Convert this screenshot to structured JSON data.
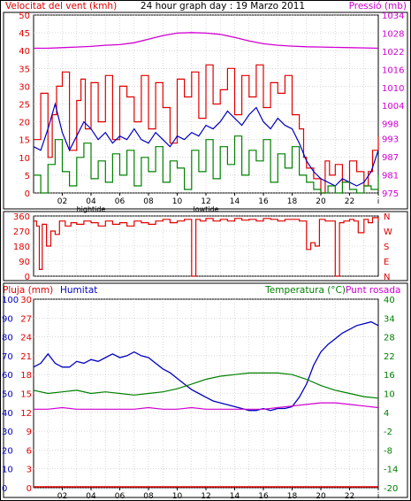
{
  "header": {
    "left_title": "Velocitat del vent (kmh)",
    "center_title": "24 hour graph day : 19 Marzo 2011",
    "right_title": "Pressió (mb)"
  },
  "colors": {
    "wind": "#e00000",
    "gust": "#0000c0",
    "avg": "#008000",
    "pressure": "#d000d0",
    "humidity": "#0000c0",
    "temperature": "#008000",
    "dewpoint": "#d000d0",
    "rain": "#e00000",
    "grid": "#c0c0c0",
    "frame": "#000000"
  },
  "x_ticks": [
    "02",
    "04",
    "06",
    "08",
    "10",
    "12",
    "14",
    "16",
    "18",
    "20",
    "22",
    "i"
  ],
  "tide_labels": [
    {
      "hour": 4,
      "text": "hightide"
    },
    {
      "hour": 12,
      "text": "lowtide"
    }
  ],
  "chart_data": [
    {
      "type": "line",
      "name": "wind-pressure",
      "x_unit": "hour",
      "xlim": [
        0,
        24
      ],
      "left_axis": {
        "label": "Velocitat del vent (kmh)",
        "ylim": [
          0,
          50
        ],
        "ticks": [
          0,
          5,
          10,
          15,
          20,
          25,
          30,
          35,
          40,
          45,
          50
        ]
      },
      "right_axis": {
        "label": "Pressió (mb)",
        "ylim": [
          975,
          1034
        ],
        "ticks": [
          975,
          981,
          987,
          993,
          998,
          1004,
          1010,
          1016,
          1022,
          1028,
          1034
        ]
      },
      "series": [
        {
          "name": "Velocitat del vent (kmh)",
          "axis": "left",
          "role": "gust",
          "x": [
            0,
            0.5,
            1,
            1.3,
            1.6,
            2,
            2.5,
            3,
            3.3,
            3.6,
            4,
            4.5,
            5,
            5.5,
            6,
            6.5,
            7,
            7.5,
            8,
            8.5,
            9,
            9.5,
            10,
            10.5,
            11,
            11.5,
            12,
            12.5,
            13,
            13.5,
            14,
            14.5,
            15,
            15.5,
            16,
            16.5,
            17,
            17.5,
            18,
            18.5,
            18.8,
            19,
            19.5,
            20,
            20.3,
            20.6,
            21,
            21.5,
            22,
            22.5,
            23,
            23.3,
            23.6,
            24
          ],
          "y": [
            15,
            28,
            10,
            22,
            30,
            34,
            12,
            26,
            32,
            18,
            31,
            20,
            33,
            15,
            30,
            27,
            20,
            33,
            18,
            31,
            24,
            14,
            32,
            27,
            34,
            21,
            36,
            25,
            29,
            35,
            22,
            33,
            27,
            36,
            24,
            31,
            28,
            33,
            22,
            18,
            10,
            7,
            4,
            0,
            9,
            5,
            8,
            3,
            9,
            6,
            2,
            6,
            12,
            16
          ]
        },
        {
          "name": "",
          "axis": "left",
          "role": "average",
          "x": [
            0,
            0.5,
            1,
            1.5,
            2,
            2.5,
            3,
            3.5,
            4,
            4.5,
            5,
            5.5,
            6,
            6.5,
            7,
            7.5,
            8,
            8.5,
            9,
            9.5,
            10,
            10.5,
            11,
            11.5,
            12,
            12.5,
            13,
            13.5,
            14,
            14.5,
            15,
            15.5,
            16,
            16.5,
            17,
            17.5,
            18,
            18.5,
            19,
            19.5,
            20,
            20.5,
            21,
            21.5,
            22,
            22.5,
            23,
            23.5,
            24
          ],
          "y": [
            13,
            12,
            18,
            25,
            17,
            12,
            16,
            20,
            18,
            15,
            17,
            14,
            16,
            15,
            18,
            15,
            14,
            17,
            15,
            13,
            16,
            15,
            17,
            16,
            19,
            18,
            20,
            23,
            21,
            19,
            22,
            24,
            20,
            18,
            21,
            19,
            18,
            14,
            9,
            6,
            4,
            3,
            2,
            4,
            3,
            2,
            3,
            6,
            12
          ]
        },
        {
          "name": "",
          "axis": "left",
          "role": "min",
          "x": [
            0,
            0.5,
            1,
            1.5,
            2,
            2.5,
            3,
            3.5,
            4,
            4.5,
            5,
            5.5,
            6,
            6.5,
            7,
            7.5,
            8,
            8.5,
            9,
            9.5,
            10,
            10.5,
            11,
            11.5,
            12,
            12.5,
            13,
            13.5,
            14,
            14.5,
            15,
            15.5,
            16,
            16.5,
            17,
            17.5,
            18,
            18.5,
            19,
            19.5,
            20,
            20.5,
            21,
            21.5,
            22,
            22.5,
            23,
            23.5,
            24
          ],
          "y": [
            5,
            0,
            8,
            15,
            6,
            2,
            10,
            14,
            4,
            9,
            3,
            11,
            5,
            12,
            2,
            10,
            6,
            13,
            3,
            9,
            7,
            1,
            12,
            6,
            15,
            4,
            13,
            8,
            16,
            5,
            12,
            9,
            15,
            3,
            11,
            7,
            13,
            5,
            3,
            1,
            0,
            2,
            0,
            3,
            1,
            0,
            2,
            1,
            5
          ]
        },
        {
          "name": "Pressió (mb)",
          "axis": "right",
          "role": "pressure",
          "x": [
            0,
            1,
            2,
            3,
            4,
            5,
            6,
            7,
            8,
            9,
            10,
            11,
            12,
            13,
            14,
            15,
            16,
            17,
            18,
            19,
            20,
            21,
            22,
            23,
            24
          ],
          "y": [
            1023,
            1023,
            1023.2,
            1023.4,
            1023.6,
            1024,
            1024.2,
            1024.8,
            1026,
            1027.2,
            1028,
            1028.2,
            1028,
            1027.6,
            1026.6,
            1025.4,
            1024.5,
            1024,
            1023.7,
            1023.5,
            1023.4,
            1023.3,
            1023.2,
            1023.1,
            1023
          ]
        }
      ]
    },
    {
      "type": "line",
      "name": "wind-direction",
      "x_unit": "hour",
      "xlim": [
        0,
        24
      ],
      "left_axis": {
        "label": "",
        "ylim": [
          0,
          360
        ],
        "ticks": [
          0,
          90,
          180,
          270,
          360
        ]
      },
      "right_labels": [
        "N",
        "W",
        "S",
        "E",
        "N"
      ],
      "series": [
        {
          "name": "",
          "axis": "left",
          "role": "direction",
          "x": [
            0,
            0.2,
            0.4,
            0.6,
            0.9,
            1.2,
            1.5,
            1.8,
            2.2,
            2.6,
            3,
            3.5,
            4,
            4.5,
            5,
            5.5,
            6,
            6.5,
            7,
            7.5,
            8,
            8.5,
            9,
            9.5,
            10,
            10.5,
            11,
            11,
            11.3,
            11.6,
            12,
            12.5,
            13,
            13.5,
            14,
            14.5,
            15,
            15.5,
            16,
            16.5,
            17,
            17.5,
            18,
            18.5,
            19,
            19.3,
            19.6,
            19.9,
            20.3,
            20.7,
            21,
            21.3,
            21.6,
            22,
            22.3,
            22.6,
            23,
            23.3,
            23.6,
            24
          ],
          "y": [
            330,
            300,
            40,
            310,
            180,
            270,
            250,
            330,
            300,
            320,
            310,
            330,
            320,
            300,
            330,
            310,
            320,
            300,
            330,
            320,
            310,
            330,
            340,
            320,
            330,
            340,
            320,
            0,
            340,
            330,
            345,
            330,
            340,
            330,
            345,
            335,
            340,
            330,
            345,
            340,
            330,
            340,
            340,
            330,
            160,
            200,
            180,
            340,
            330,
            330,
            0,
            320,
            330,
            340,
            330,
            260,
            340,
            320,
            350,
            330
          ]
        }
      ]
    },
    {
      "type": "line",
      "name": "rain-humidity-temperature",
      "x_unit": "hour",
      "xlim": [
        0,
        24
      ],
      "axes": [
        {
          "label": "Pluja (mm)",
          "ylim": [
            0,
            100
          ],
          "ticks": [
            0,
            10,
            20,
            30,
            40,
            50,
            60,
            70,
            80,
            90,
            100
          ]
        },
        {
          "label": "Humitat",
          "ylim": [
            0,
            30
          ],
          "ticks": [
            0,
            3,
            6,
            9,
            12,
            15,
            18,
            21,
            24,
            27,
            30
          ]
        },
        {
          "label": "Temperatura (°C)",
          "ylim": [
            -20,
            40
          ],
          "ticks": [
            -20,
            -14,
            -8,
            -2,
            4,
            10,
            16,
            22,
            28,
            34,
            40
          ]
        }
      ],
      "right_label_extra": "Punt rosada",
      "series": [
        {
          "name": "Humitat",
          "axis": 0,
          "role": "humidity",
          "x": [
            0,
            0.5,
            1,
            1.5,
            2,
            2.5,
            3,
            3.5,
            4,
            4.5,
            5,
            5.5,
            6,
            6.5,
            7,
            7.5,
            8,
            8.5,
            9,
            9.5,
            10,
            10.5,
            11,
            11.5,
            12,
            12.5,
            13,
            13.5,
            14,
            14.5,
            15,
            15.5,
            16,
            16.5,
            17,
            17.5,
            18,
            18.5,
            19,
            19.5,
            20,
            20.5,
            21,
            21.5,
            22,
            22.5,
            23,
            23.5,
            24
          ],
          "y": [
            64,
            66,
            71,
            66,
            64,
            64,
            67,
            66,
            68,
            67,
            69,
            71,
            69,
            70,
            72,
            70,
            69,
            66,
            63,
            61,
            58,
            55,
            52,
            50,
            48,
            46,
            45,
            44,
            43,
            42,
            41,
            41,
            42,
            41,
            42,
            42,
            43,
            48,
            55,
            65,
            72,
            76,
            79,
            82,
            84,
            86,
            87,
            88,
            86
          ]
        },
        {
          "name": "Temperatura (°C)",
          "axis": 2,
          "role": "temperature",
          "x": [
            0,
            1,
            2,
            3,
            4,
            5,
            6,
            7,
            8,
            9,
            10,
            11,
            12,
            13,
            14,
            15,
            16,
            17,
            18,
            19,
            20,
            21,
            22,
            23,
            24
          ],
          "y": [
            11,
            10,
            10.5,
            11,
            10,
            10.5,
            10,
            9.5,
            10,
            10.5,
            11.5,
            13,
            14.5,
            15.5,
            16,
            16.5,
            16.5,
            16.5,
            16,
            14.5,
            12.5,
            11,
            10,
            9,
            8.5
          ]
        },
        {
          "name": "Punt rosada",
          "axis": 2,
          "role": "dewpoint",
          "x": [
            0,
            1,
            2,
            3,
            4,
            5,
            6,
            7,
            8,
            9,
            10,
            11,
            12,
            13,
            14,
            15,
            16,
            17,
            18,
            19,
            20,
            21,
            22,
            23,
            24
          ],
          "y": [
            5,
            5,
            5.5,
            5,
            5,
            5,
            5,
            5,
            5.5,
            5,
            5,
            5.5,
            5,
            5,
            5,
            5,
            5,
            5.5,
            6,
            6.5,
            7,
            7,
            6.5,
            6,
            5.5
          ]
        },
        {
          "name": "Pluja (mm)",
          "axis": 0,
          "role": "rain",
          "x": [
            0,
            24
          ],
          "y": [
            0,
            0
          ]
        }
      ]
    }
  ]
}
